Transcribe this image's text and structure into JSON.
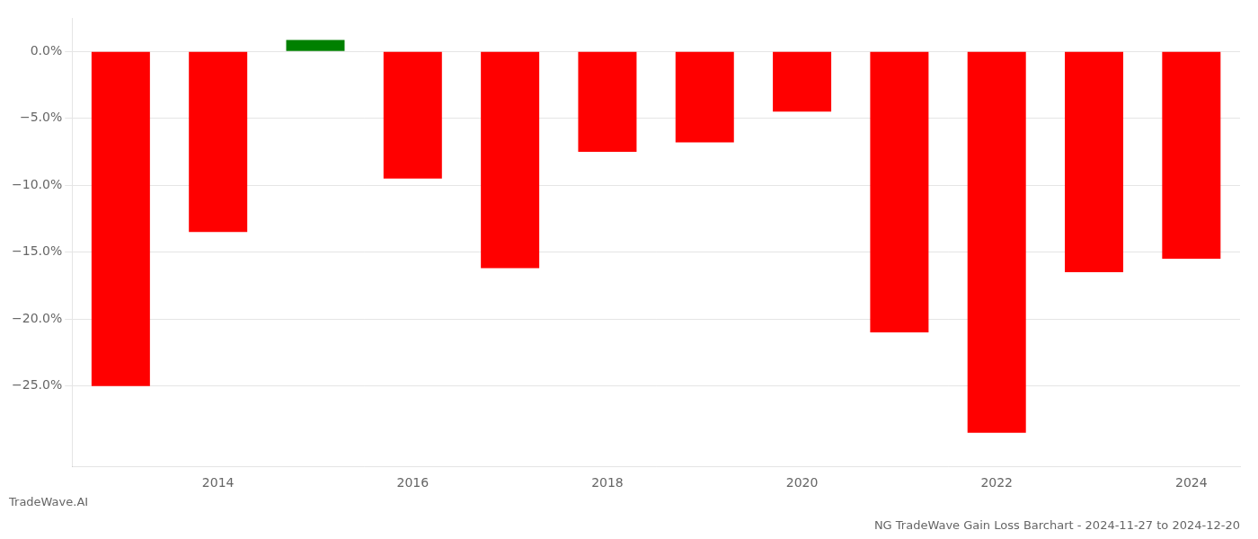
{
  "chart_data": {
    "type": "bar",
    "title": "NG TradeWave Gain Loss Barchart - 2024-11-27 to 2024-12-20",
    "annotations": [
      "TradeWave.AI"
    ],
    "categories": [
      null,
      "2014",
      null,
      "2016",
      null,
      "2018",
      null,
      "2020",
      null,
      "2022",
      null,
      "2024"
    ],
    "values": [
      -25.0,
      -13.5,
      0.85,
      -9.5,
      -16.2,
      -7.5,
      -6.8,
      -4.5,
      -21.0,
      -28.5,
      -16.5,
      -15.5
    ],
    "colors": [
      "#ff0000",
      "#ff0000",
      "#008000",
      "#ff0000",
      "#ff0000",
      "#ff0000",
      "#ff0000",
      "#ff0000",
      "#ff0000",
      "#ff0000",
      "#ff0000",
      "#ff0000"
    ],
    "ylim": [
      -31,
      2.5
    ],
    "yticks": [
      {
        "value": 0.0,
        "label": "0.0%"
      },
      {
        "value": -5.0,
        "label": "−5.0%"
      },
      {
        "value": -10.0,
        "label": "−10.0%"
      },
      {
        "value": -15.0,
        "label": "−15.0%"
      },
      {
        "value": -20.0,
        "label": "−20.0%"
      },
      {
        "value": -25.0,
        "label": "−25.0%"
      }
    ],
    "grid": true
  }
}
